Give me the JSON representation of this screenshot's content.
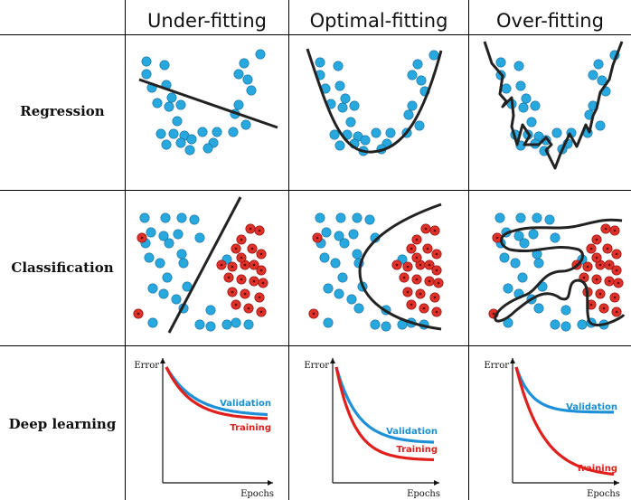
{
  "columns": [
    "Under-fitting",
    "Optimal-fitting",
    "Over-fitting"
  ],
  "rows": [
    "Regression",
    "Classification",
    "Deep learning"
  ],
  "axis": {
    "y_label": "Error",
    "x_label": "Epochs"
  },
  "curve_labels": {
    "validation": "Validation",
    "training": "Training"
  },
  "colors": {
    "blue_point": "#27a8de",
    "red_point": "#e0302a",
    "fit_line": "#222222",
    "validation_curve": "#1e90d8",
    "training_curve": "#e0201c",
    "validation_label": "#1a8fd0",
    "training_label": "#e0201c"
  }
}
